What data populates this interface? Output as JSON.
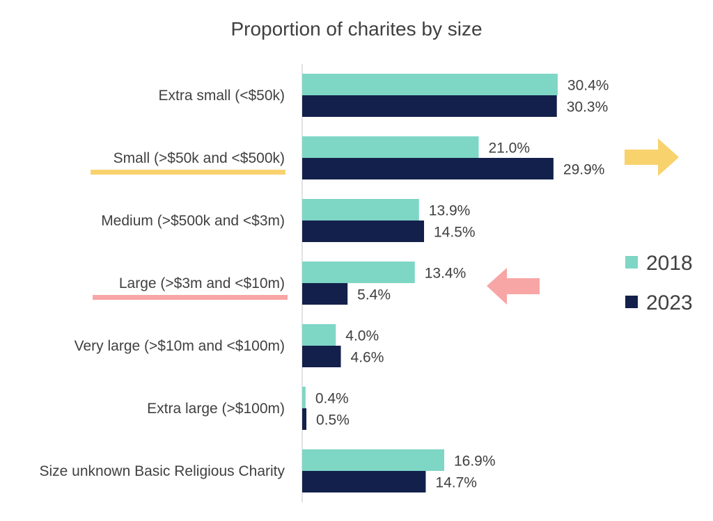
{
  "chart_data": {
    "type": "bar",
    "orientation": "horizontal",
    "title": "Proportion of charites by size",
    "xlabel": "",
    "ylabel": "",
    "xlim": [
      0,
      34
    ],
    "categories": [
      "Extra small (<$50k)",
      "Small (>$50k  and <$500k)",
      "Medium  (>$500k  and <$3m)",
      "Large (>$3m  and <$10m)",
      "Very large (>$10m  and <$100m)",
      "Extra large (>$100m)",
      "Size unknown Basic Religious Charity"
    ],
    "series": [
      {
        "name": "2018",
        "color": "#7ed6c5",
        "values": [
          30.4,
          21.0,
          13.9,
          13.4,
          4.0,
          0.4,
          16.9
        ],
        "labels": [
          "30.4%",
          "21.0%",
          "13.9%",
          "13.4%",
          "4.0%",
          "0.4%",
          "16.9%"
        ]
      },
      {
        "name": "2023",
        "color": "#13204b",
        "values": [
          30.3,
          29.9,
          14.5,
          5.4,
          4.6,
          0.5,
          14.7
        ],
        "labels": [
          "30.3%",
          "29.9%",
          "14.5%",
          "5.4%",
          "4.6%",
          "0.5%",
          "14.7%"
        ]
      }
    ],
    "legend": {
      "position": "right"
    },
    "grid": false,
    "annotations": [
      {
        "type": "underline",
        "category_index": 1,
        "color": "#f8d26d"
      },
      {
        "type": "underline",
        "category_index": 3,
        "color": "#f8a5a5"
      },
      {
        "type": "arrow",
        "direction": "right",
        "category_index": 1,
        "color": "#f8d26d"
      },
      {
        "type": "arrow",
        "direction": "left",
        "category_index": 3,
        "color": "#f8a5a5"
      }
    ]
  }
}
